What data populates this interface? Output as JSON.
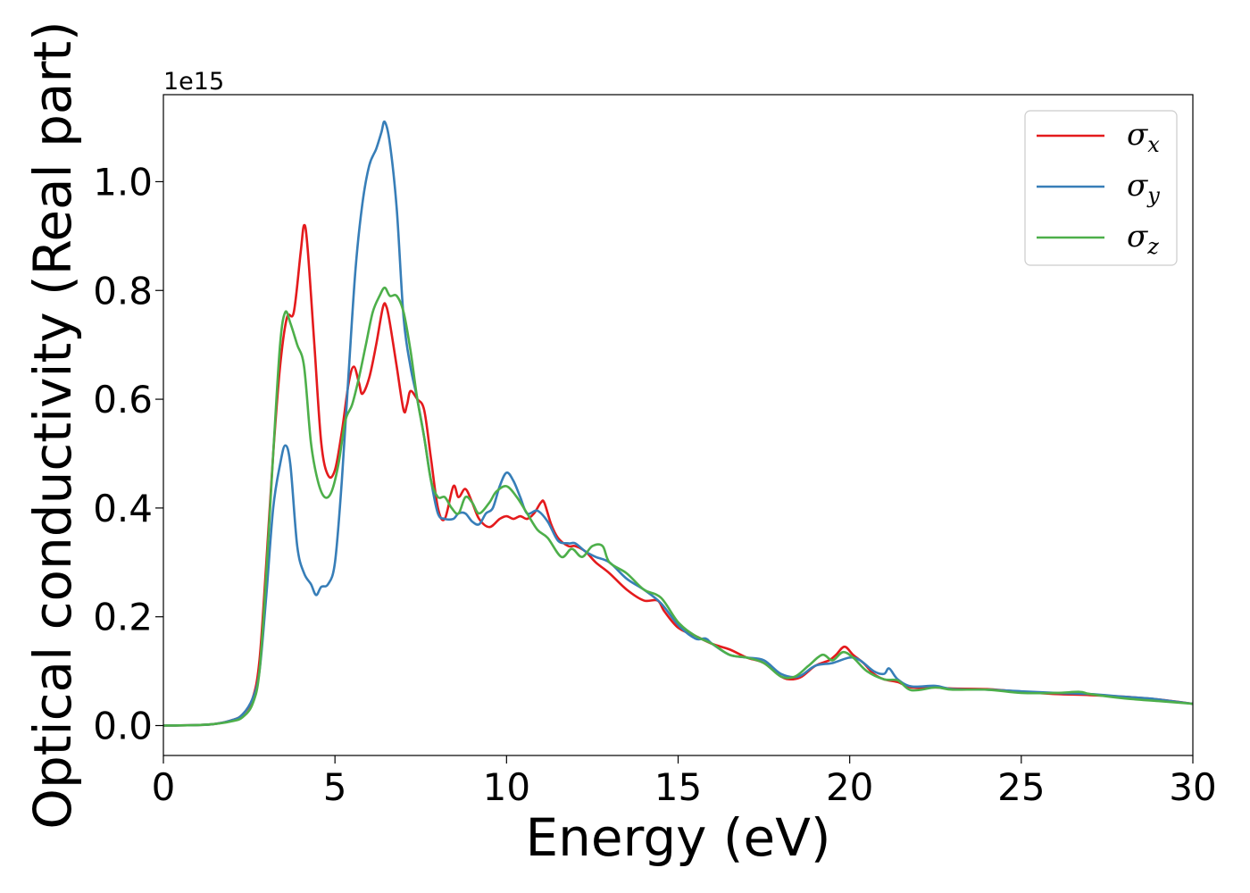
{
  "chart_data": {
    "type": "line",
    "title": "",
    "xlabel": "Energy (eV)",
    "ylabel": "Optical conductivity (Real part)",
    "y_offset_label": "1e15",
    "xlim": [
      0,
      30
    ],
    "ylim": [
      -0.055,
      1.16
    ],
    "x_ticks": [
      0,
      5,
      10,
      15,
      20,
      25,
      30
    ],
    "y_ticks": [
      0.0,
      0.2,
      0.4,
      0.6,
      0.8,
      1.0
    ],
    "x_tick_labels": [
      "0",
      "5",
      "10",
      "15",
      "20",
      "25",
      "30"
    ],
    "y_tick_labels": [
      "0.0",
      "0.2",
      "0.4",
      "0.6",
      "0.8",
      "1.0"
    ],
    "grid": false,
    "legend_position": "top-right",
    "series": [
      {
        "name": "σx",
        "symbol": "σ",
        "subscript": "x",
        "color": "#e41a1c",
        "points": [
          [
            0,
            0
          ],
          [
            1,
            0.001
          ],
          [
            1.5,
            0.003
          ],
          [
            2,
            0.01
          ],
          [
            2.3,
            0.02
          ],
          [
            2.6,
            0.05
          ],
          [
            2.8,
            0.12
          ],
          [
            3.0,
            0.3
          ],
          [
            3.2,
            0.5
          ],
          [
            3.4,
            0.66
          ],
          [
            3.6,
            0.75
          ],
          [
            3.8,
            0.76
          ],
          [
            4.0,
            0.87
          ],
          [
            4.1,
            0.92
          ],
          [
            4.2,
            0.88
          ],
          [
            4.4,
            0.7
          ],
          [
            4.6,
            0.52
          ],
          [
            4.8,
            0.46
          ],
          [
            5.0,
            0.47
          ],
          [
            5.2,
            0.54
          ],
          [
            5.4,
            0.63
          ],
          [
            5.55,
            0.66
          ],
          [
            5.7,
            0.63
          ],
          [
            5.8,
            0.61
          ],
          [
            6.0,
            0.64
          ],
          [
            6.2,
            0.7
          ],
          [
            6.4,
            0.77
          ],
          [
            6.5,
            0.77
          ],
          [
            6.6,
            0.74
          ],
          [
            6.8,
            0.66
          ],
          [
            7.0,
            0.58
          ],
          [
            7.1,
            0.59
          ],
          [
            7.2,
            0.615
          ],
          [
            7.4,
            0.6
          ],
          [
            7.6,
            0.58
          ],
          [
            7.8,
            0.49
          ],
          [
            8.0,
            0.4
          ],
          [
            8.2,
            0.38
          ],
          [
            8.45,
            0.44
          ],
          [
            8.6,
            0.42
          ],
          [
            8.8,
            0.435
          ],
          [
            9.0,
            0.41
          ],
          [
            9.2,
            0.38
          ],
          [
            9.5,
            0.365
          ],
          [
            9.8,
            0.38
          ],
          [
            10.0,
            0.385
          ],
          [
            10.2,
            0.38
          ],
          [
            10.4,
            0.385
          ],
          [
            10.6,
            0.38
          ],
          [
            10.8,
            0.39
          ],
          [
            11.0,
            0.41
          ],
          [
            11.1,
            0.41
          ],
          [
            11.3,
            0.37
          ],
          [
            11.5,
            0.345
          ],
          [
            11.8,
            0.33
          ],
          [
            12.0,
            0.33
          ],
          [
            12.3,
            0.32
          ],
          [
            12.6,
            0.3
          ],
          [
            13.0,
            0.28
          ],
          [
            13.5,
            0.25
          ],
          [
            14.0,
            0.23
          ],
          [
            14.4,
            0.23
          ],
          [
            14.6,
            0.21
          ],
          [
            15.0,
            0.18
          ],
          [
            15.5,
            0.165
          ],
          [
            16.0,
            0.15
          ],
          [
            16.5,
            0.14
          ],
          [
            17.0,
            0.125
          ],
          [
            17.5,
            0.115
          ],
          [
            18.0,
            0.09
          ],
          [
            18.3,
            0.085
          ],
          [
            18.6,
            0.09
          ],
          [
            19.0,
            0.11
          ],
          [
            19.4,
            0.12
          ],
          [
            19.6,
            0.13
          ],
          [
            19.85,
            0.145
          ],
          [
            20.1,
            0.13
          ],
          [
            20.4,
            0.115
          ],
          [
            20.7,
            0.095
          ],
          [
            21.0,
            0.085
          ],
          [
            21.4,
            0.08
          ],
          [
            21.8,
            0.07
          ],
          [
            22.5,
            0.07
          ],
          [
            23.0,
            0.068
          ],
          [
            24.0,
            0.067
          ],
          [
            25.0,
            0.062
          ],
          [
            26.0,
            0.058
          ],
          [
            27.0,
            0.056
          ],
          [
            28.0,
            0.053
          ],
          [
            29.0,
            0.048
          ],
          [
            30.0,
            0.04
          ]
        ]
      },
      {
        "name": "σy",
        "symbol": "σ",
        "subscript": "y",
        "color": "#377eb8",
        "points": [
          [
            0,
            0
          ],
          [
            1,
            0.001
          ],
          [
            1.5,
            0.003
          ],
          [
            2,
            0.01
          ],
          [
            2.3,
            0.02
          ],
          [
            2.6,
            0.05
          ],
          [
            2.8,
            0.1
          ],
          [
            3.0,
            0.24
          ],
          [
            3.2,
            0.4
          ],
          [
            3.4,
            0.48
          ],
          [
            3.55,
            0.515
          ],
          [
            3.7,
            0.48
          ],
          [
            3.9,
            0.33
          ],
          [
            4.1,
            0.28
          ],
          [
            4.3,
            0.26
          ],
          [
            4.45,
            0.24
          ],
          [
            4.6,
            0.255
          ],
          [
            4.8,
            0.26
          ],
          [
            5.0,
            0.3
          ],
          [
            5.2,
            0.45
          ],
          [
            5.4,
            0.65
          ],
          [
            5.6,
            0.84
          ],
          [
            5.8,
            0.96
          ],
          [
            6.0,
            1.03
          ],
          [
            6.2,
            1.06
          ],
          [
            6.35,
            1.09
          ],
          [
            6.45,
            1.11
          ],
          [
            6.6,
            1.07
          ],
          [
            6.8,
            0.95
          ],
          [
            7.0,
            0.75
          ],
          [
            7.2,
            0.66
          ],
          [
            7.4,
            0.6
          ],
          [
            7.6,
            0.53
          ],
          [
            7.8,
            0.45
          ],
          [
            8.0,
            0.39
          ],
          [
            8.2,
            0.38
          ],
          [
            8.45,
            0.38
          ],
          [
            8.6,
            0.39
          ],
          [
            8.8,
            0.39
          ],
          [
            9.0,
            0.375
          ],
          [
            9.2,
            0.37
          ],
          [
            9.4,
            0.39
          ],
          [
            9.6,
            0.4
          ],
          [
            9.8,
            0.44
          ],
          [
            10.0,
            0.465
          ],
          [
            10.2,
            0.45
          ],
          [
            10.4,
            0.42
          ],
          [
            10.6,
            0.39
          ],
          [
            10.9,
            0.395
          ],
          [
            11.2,
            0.375
          ],
          [
            11.5,
            0.34
          ],
          [
            11.8,
            0.335
          ],
          [
            12.0,
            0.335
          ],
          [
            12.3,
            0.32
          ],
          [
            12.6,
            0.31
          ],
          [
            13.0,
            0.3
          ],
          [
            13.5,
            0.27
          ],
          [
            14.0,
            0.25
          ],
          [
            14.5,
            0.225
          ],
          [
            15.0,
            0.185
          ],
          [
            15.5,
            0.16
          ],
          [
            15.8,
            0.16
          ],
          [
            16.0,
            0.15
          ],
          [
            16.5,
            0.13
          ],
          [
            17.0,
            0.125
          ],
          [
            17.5,
            0.12
          ],
          [
            18.0,
            0.095
          ],
          [
            18.5,
            0.09
          ],
          [
            19.0,
            0.11
          ],
          [
            19.5,
            0.115
          ],
          [
            20.0,
            0.125
          ],
          [
            20.3,
            0.12
          ],
          [
            20.7,
            0.1
          ],
          [
            21.0,
            0.095
          ],
          [
            21.15,
            0.105
          ],
          [
            21.4,
            0.085
          ],
          [
            21.8,
            0.072
          ],
          [
            22.5,
            0.073
          ],
          [
            23.0,
            0.067
          ],
          [
            24.0,
            0.066
          ],
          [
            25.0,
            0.063
          ],
          [
            26.0,
            0.06
          ],
          [
            27.0,
            0.058
          ],
          [
            28.0,
            0.053
          ],
          [
            28.7,
            0.05
          ],
          [
            29.0,
            0.048
          ],
          [
            30.0,
            0.04
          ]
        ]
      },
      {
        "name": "σz",
        "symbol": "σ",
        "subscript": "z",
        "color": "#4daf4a",
        "points": [
          [
            0,
            0
          ],
          [
            1,
            0.001
          ],
          [
            1.5,
            0.003
          ],
          [
            2,
            0.008
          ],
          [
            2.3,
            0.015
          ],
          [
            2.6,
            0.04
          ],
          [
            2.8,
            0.1
          ],
          [
            3.0,
            0.28
          ],
          [
            3.2,
            0.5
          ],
          [
            3.4,
            0.7
          ],
          [
            3.55,
            0.76
          ],
          [
            3.7,
            0.74
          ],
          [
            3.9,
            0.7
          ],
          [
            4.1,
            0.66
          ],
          [
            4.3,
            0.52
          ],
          [
            4.5,
            0.45
          ],
          [
            4.7,
            0.42
          ],
          [
            4.9,
            0.43
          ],
          [
            5.1,
            0.48
          ],
          [
            5.3,
            0.56
          ],
          [
            5.5,
            0.59
          ],
          [
            5.7,
            0.64
          ],
          [
            5.9,
            0.7
          ],
          [
            6.1,
            0.76
          ],
          [
            6.3,
            0.79
          ],
          [
            6.45,
            0.805
          ],
          [
            6.6,
            0.79
          ],
          [
            6.8,
            0.79
          ],
          [
            7.0,
            0.76
          ],
          [
            7.2,
            0.69
          ],
          [
            7.4,
            0.6
          ],
          [
            7.6,
            0.53
          ],
          [
            7.8,
            0.45
          ],
          [
            8.0,
            0.42
          ],
          [
            8.2,
            0.42
          ],
          [
            8.4,
            0.4
          ],
          [
            8.6,
            0.39
          ],
          [
            8.8,
            0.42
          ],
          [
            9.0,
            0.41
          ],
          [
            9.2,
            0.39
          ],
          [
            9.5,
            0.41
          ],
          [
            9.7,
            0.43
          ],
          [
            10.0,
            0.44
          ],
          [
            10.3,
            0.42
          ],
          [
            10.6,
            0.39
          ],
          [
            10.9,
            0.36
          ],
          [
            11.2,
            0.345
          ],
          [
            11.6,
            0.31
          ],
          [
            11.9,
            0.325
          ],
          [
            12.2,
            0.31
          ],
          [
            12.5,
            0.33
          ],
          [
            12.8,
            0.33
          ],
          [
            13.0,
            0.3
          ],
          [
            13.5,
            0.28
          ],
          [
            14.0,
            0.25
          ],
          [
            14.5,
            0.235
          ],
          [
            15.0,
            0.19
          ],
          [
            15.5,
            0.165
          ],
          [
            16.0,
            0.15
          ],
          [
            16.5,
            0.13
          ],
          [
            17.0,
            0.125
          ],
          [
            17.5,
            0.115
          ],
          [
            18.0,
            0.09
          ],
          [
            18.4,
            0.09
          ],
          [
            18.8,
            0.11
          ],
          [
            19.2,
            0.13
          ],
          [
            19.5,
            0.12
          ],
          [
            19.8,
            0.135
          ],
          [
            20.1,
            0.125
          ],
          [
            20.5,
            0.1
          ],
          [
            21.0,
            0.085
          ],
          [
            21.4,
            0.083
          ],
          [
            21.8,
            0.065
          ],
          [
            22.5,
            0.07
          ],
          [
            23.0,
            0.066
          ],
          [
            24.0,
            0.066
          ],
          [
            25.0,
            0.06
          ],
          [
            26.0,
            0.06
          ],
          [
            26.7,
            0.062
          ],
          [
            27.0,
            0.058
          ],
          [
            28.0,
            0.05
          ],
          [
            29.0,
            0.045
          ],
          [
            30.0,
            0.04
          ]
        ]
      }
    ]
  }
}
